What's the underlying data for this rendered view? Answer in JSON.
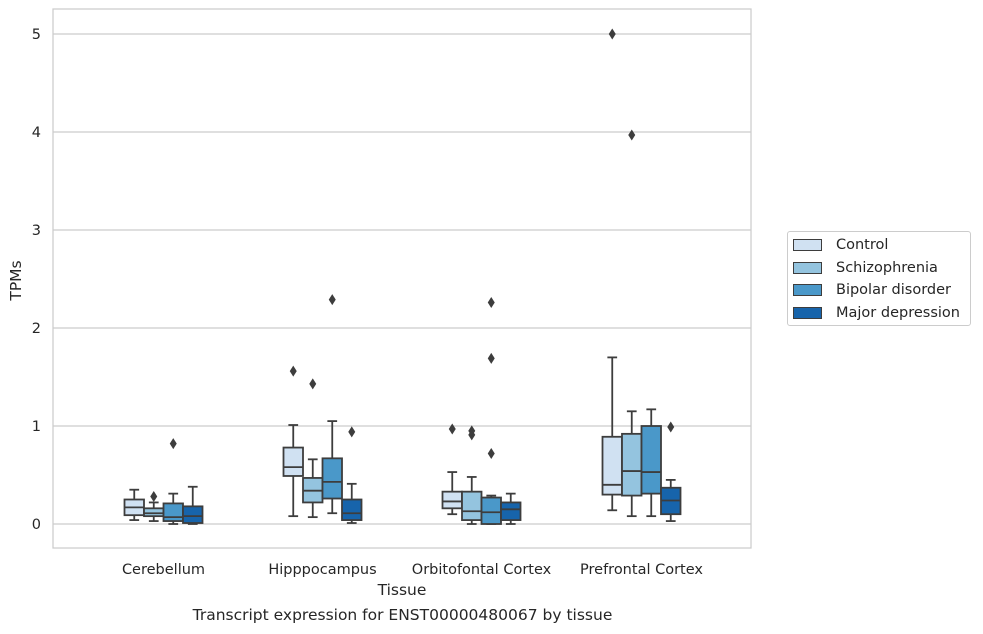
{
  "chart_data": {
    "type": "boxplot",
    "title": "",
    "caption": "Transcript expression for ENST00000480067 by tissue",
    "xlabel": "Tissue",
    "ylabel": "TPMs",
    "ylim": [
      -0.25,
      5.25
    ],
    "yticks": [
      0,
      1,
      2,
      3,
      4,
      5
    ],
    "grid": true,
    "legend_position": "right",
    "categories": [
      "Cerebellum",
      "Hipppocampus",
      "Orbitofontal Cortex",
      "Prefrontal Cortex"
    ],
    "series": [
      {
        "name": "Control",
        "color": "#d0e1f2",
        "boxes": [
          {
            "whisker_low": 0.04,
            "q1": 0.09,
            "median": 0.17,
            "q3": 0.25,
            "whisker_high": 0.35,
            "outliers": []
          },
          {
            "whisker_low": 0.08,
            "q1": 0.49,
            "median": 0.58,
            "q3": 0.78,
            "whisker_high": 1.01,
            "outliers": [
              1.56
            ]
          },
          {
            "whisker_low": 0.1,
            "q1": 0.16,
            "median": 0.23,
            "q3": 0.33,
            "whisker_high": 0.53,
            "outliers": [
              0.97
            ]
          },
          {
            "whisker_low": 0.14,
            "q1": 0.3,
            "median": 0.4,
            "q3": 0.89,
            "whisker_high": 1.7,
            "outliers": [
              5.0
            ]
          }
        ]
      },
      {
        "name": "Schizophrenia",
        "color": "#94c4df",
        "boxes": [
          {
            "whisker_low": 0.03,
            "q1": 0.08,
            "median": 0.11,
            "q3": 0.16,
            "whisker_high": 0.22,
            "outliers": [
              0.28
            ]
          },
          {
            "whisker_low": 0.07,
            "q1": 0.22,
            "median": 0.34,
            "q3": 0.47,
            "whisker_high": 0.66,
            "outliers": [
              1.43
            ]
          },
          {
            "whisker_low": 0.0,
            "q1": 0.04,
            "median": 0.13,
            "q3": 0.33,
            "whisker_high": 0.48,
            "outliers": [
              0.91,
              0.95
            ]
          },
          {
            "whisker_low": 0.08,
            "q1": 0.29,
            "median": 0.54,
            "q3": 0.92,
            "whisker_high": 1.15,
            "outliers": [
              3.97
            ]
          }
        ]
      },
      {
        "name": "Bipolar disorder",
        "color": "#4a98c9",
        "boxes": [
          {
            "whisker_low": 0.0,
            "q1": 0.03,
            "median": 0.07,
            "q3": 0.21,
            "whisker_high": 0.31,
            "outliers": [
              0.82
            ]
          },
          {
            "whisker_low": 0.11,
            "q1": 0.26,
            "median": 0.43,
            "q3": 0.67,
            "whisker_high": 1.05,
            "outliers": [
              2.29
            ]
          },
          {
            "whisker_low": 0.0,
            "q1": 0.0,
            "median": 0.12,
            "q3": 0.27,
            "whisker_high": 0.29,
            "outliers": [
              0.72,
              1.69,
              2.26
            ]
          },
          {
            "whisker_low": 0.08,
            "q1": 0.31,
            "median": 0.53,
            "q3": 1.0,
            "whisker_high": 1.17,
            "outliers": []
          }
        ]
      },
      {
        "name": "Major depression",
        "color": "#1764ab",
        "boxes": [
          {
            "whisker_low": 0.0,
            "q1": 0.01,
            "median": 0.08,
            "q3": 0.18,
            "whisker_high": 0.38,
            "outliers": []
          },
          {
            "whisker_low": 0.01,
            "q1": 0.04,
            "median": 0.11,
            "q3": 0.25,
            "whisker_high": 0.41,
            "outliers": [
              0.94
            ]
          },
          {
            "whisker_low": 0.0,
            "q1": 0.04,
            "median": 0.15,
            "q3": 0.22,
            "whisker_high": 0.31,
            "outliers": []
          },
          {
            "whisker_low": 0.03,
            "q1": 0.1,
            "median": 0.24,
            "q3": 0.37,
            "whisker_high": 0.45,
            "outliers": [
              0.99
            ]
          }
        ]
      }
    ]
  }
}
